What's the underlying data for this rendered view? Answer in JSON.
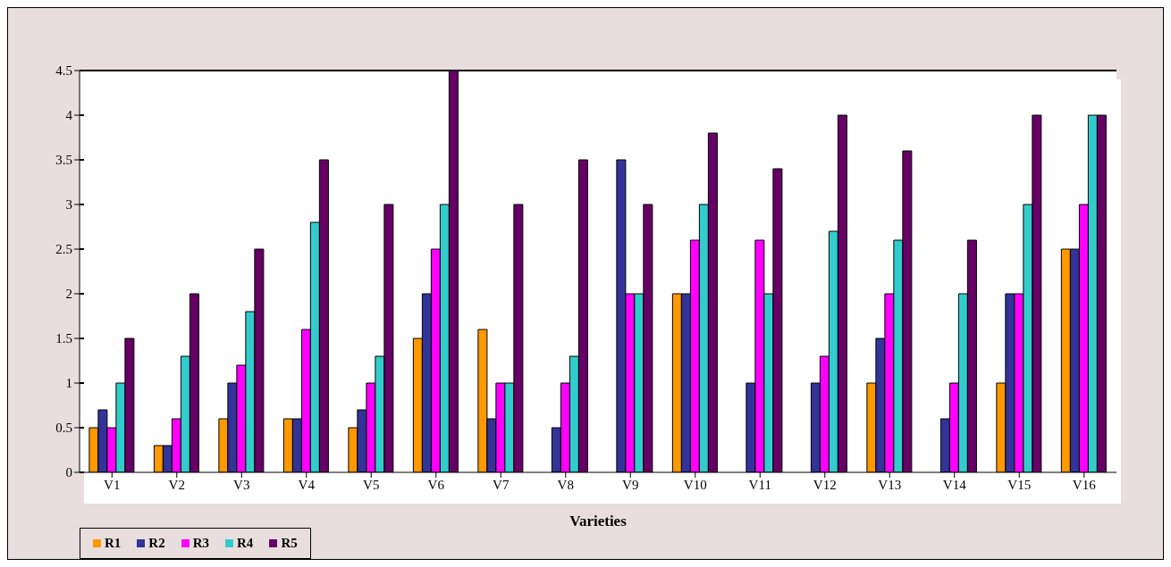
{
  "chart_data": {
    "type": "bar",
    "xlabel": "Varieties",
    "categories": [
      "V1",
      "V2",
      "V3",
      "V4",
      "V5",
      "V6",
      "V7",
      "V8",
      "V9",
      "V10",
      "V11",
      "V12",
      "V13",
      "V14",
      "V15",
      "V16"
    ],
    "series": [
      {
        "name": "R1",
        "color": "#ff9900",
        "values": [
          0.5,
          0.3,
          0.6,
          0.6,
          0.5,
          1.5,
          1.6,
          0,
          0,
          2,
          0,
          0,
          1,
          0,
          1,
          2.5
        ]
      },
      {
        "name": "R2",
        "color": "#333399",
        "values": [
          0.7,
          0.3,
          1,
          0.6,
          0.7,
          2,
          0.6,
          0.5,
          3.5,
          2,
          1,
          1,
          1.5,
          0.6,
          2,
          2.5
        ]
      },
      {
        "name": "R3",
        "color": "#ff00ff",
        "values": [
          0.5,
          0.6,
          1.2,
          1.6,
          1,
          2.5,
          1,
          1,
          2,
          2.6,
          2.6,
          1.3,
          2,
          1,
          2,
          3
        ]
      },
      {
        "name": "R4",
        "color": "#33cccc",
        "values": [
          1,
          1.3,
          1.8,
          2.8,
          1.3,
          3,
          1,
          1.3,
          2,
          3,
          2,
          2.7,
          2.6,
          2,
          3,
          4
        ]
      },
      {
        "name": "R5",
        "color": "#660066",
        "values": [
          1.5,
          2,
          2.5,
          3.5,
          3,
          4.5,
          3,
          3.5,
          3,
          3.8,
          3.4,
          4,
          3.6,
          2.6,
          4,
          4
        ]
      }
    ],
    "ylim": [
      0,
      4.5
    ],
    "yticks": [
      0,
      0.5,
      1,
      1.5,
      2,
      2.5,
      3,
      3.5,
      4,
      4.5
    ],
    "grid": "y",
    "legend": "bottom left"
  }
}
